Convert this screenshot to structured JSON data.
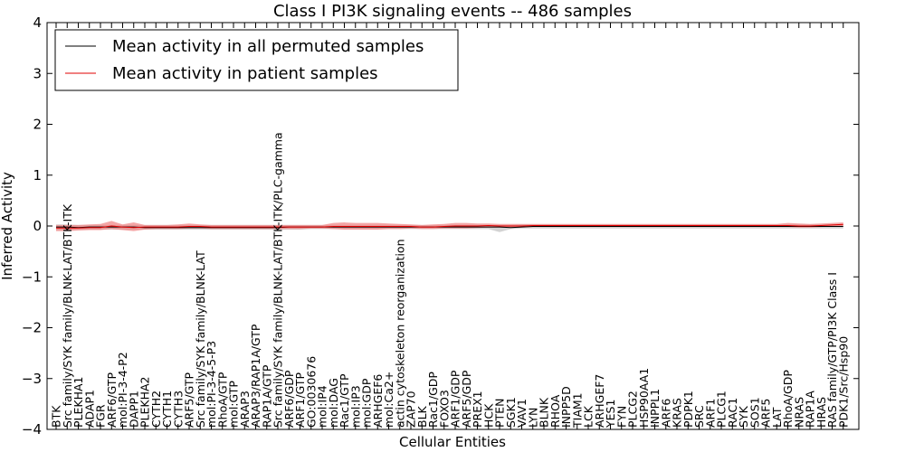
{
  "chart_data": {
    "type": "line",
    "title": "Class I PI3K signaling events -- 486 samples",
    "xlabel": "Cellular Entities",
    "ylabel": "Inferred Activity",
    "ylim": [
      -4,
      4
    ],
    "yticks": [
      "4",
      "3",
      "2",
      "1",
      "0",
      "−1",
      "−2",
      "−3",
      "−4"
    ],
    "ytick_values": [
      4,
      3,
      2,
      1,
      0,
      -1,
      -2,
      -3,
      -4
    ],
    "legend_position": "top-left",
    "categories": [
      "BTK",
      "Src family/SYK family/BLNK-LAT/BTK-ITK",
      "PLEKHA1",
      "ADAP1",
      "FGR",
      "ARF6/GTP",
      "mol:PI-3-4-P2",
      "DAPP1",
      "PLEKHA2",
      "CYTH2",
      "CYTH1",
      "CYTH3",
      "ARF5/GTP",
      "Src family/SYK family/BLNK-LAT",
      "mol:PI-3-4-5-P3",
      "RhoA/GTP",
      "mol:GTP",
      "ARAP3",
      "ARAP3/RAP1A/GTP",
      "RAP1A/GTP",
      "Src family/SYK family/BLNK-LAT/BTK-ITK/PLC-gamma",
      "ARF6/GDP",
      "ARF1/GTP",
      "GO:0030676",
      "mol:IP4",
      "mol:DAG",
      "Rac1/GTP",
      "mol:IP3",
      "mol:GDP",
      "ARHGEF6",
      "mol:Ca2+",
      "actin cytoskeleton reorganization",
      "ZAP70",
      "BLK",
      "Rac1/GDP",
      "FOXO3",
      "ARF1/GDP",
      "ARF5/GDP",
      "PREX1",
      "HCK",
      "PTEN",
      "SGK1",
      "VAV1",
      "LYN",
      "BLNK",
      "RHOA",
      "INPP5D",
      "TIAM1",
      "LCK",
      "ARHGEF7",
      "YES1",
      "FYN",
      "PLCG2",
      "HSP90AA1",
      "INPPL1",
      "ARF6",
      "KRAS",
      "PDPK1",
      "SRC",
      "ARF1",
      "PLCG1",
      "RAC1",
      "SYK",
      "SOS1",
      "ARF5",
      "LAT",
      "RhoA/GDP",
      "NRAS",
      "RAP1A",
      "HRAS",
      "RAS family/GTP/PI3K Class I",
      "PDK1/Src/Hsp90"
    ],
    "series": [
      {
        "name": "Mean activity in all permuted samples",
        "color": "#000000",
        "values": [
          -0.02,
          -0.02,
          -0.03,
          -0.02,
          -0.02,
          -0.02,
          -0.02,
          -0.02,
          -0.03,
          -0.03,
          -0.03,
          -0.03,
          -0.03,
          -0.03,
          -0.03,
          -0.03,
          -0.03,
          -0.03,
          -0.03,
          -0.03,
          -0.03,
          -0.02,
          -0.02,
          -0.02,
          -0.02,
          -0.02,
          -0.02,
          -0.02,
          -0.02,
          -0.02,
          -0.02,
          -0.02,
          -0.02,
          -0.02,
          -0.02,
          -0.02,
          -0.02,
          -0.02,
          -0.02,
          -0.02,
          -0.02,
          -0.03,
          -0.02,
          -0.01,
          -0.01,
          -0.01,
          -0.01,
          -0.01,
          -0.01,
          -0.01,
          -0.01,
          -0.01,
          -0.01,
          -0.01,
          -0.01,
          -0.01,
          -0.01,
          -0.01,
          -0.01,
          -0.01,
          -0.01,
          -0.01,
          -0.01,
          -0.01,
          -0.01,
          -0.01,
          -0.01,
          -0.01,
          -0.01,
          -0.01,
          -0.01,
          -0.01
        ],
        "band_lower": [
          -0.08,
          -0.08,
          -0.07,
          -0.07,
          -0.07,
          -0.07,
          -0.07,
          -0.07,
          -0.07,
          -0.07,
          -0.07,
          -0.07,
          -0.07,
          -0.07,
          -0.07,
          -0.07,
          -0.07,
          -0.07,
          -0.07,
          -0.07,
          -0.07,
          -0.07,
          -0.07,
          -0.06,
          -0.06,
          -0.06,
          -0.06,
          -0.06,
          -0.06,
          -0.06,
          -0.06,
          -0.06,
          -0.06,
          -0.06,
          -0.06,
          -0.06,
          -0.06,
          -0.06,
          -0.06,
          -0.06,
          -0.12,
          -0.06,
          -0.05,
          -0.05,
          -0.05,
          -0.05,
          -0.05,
          -0.05,
          -0.05,
          -0.05,
          -0.05,
          -0.05,
          -0.05,
          -0.05,
          -0.05,
          -0.05,
          -0.05,
          -0.05,
          -0.05,
          -0.05,
          -0.05,
          -0.05,
          -0.05,
          -0.05,
          -0.05,
          -0.05,
          -0.05,
          -0.05,
          -0.05,
          -0.05,
          -0.05,
          -0.05
        ],
        "band_upper": [
          0.03,
          0.03,
          0.02,
          0.02,
          0.02,
          0.02,
          0.02,
          0.02,
          0.02,
          0.02,
          0.02,
          0.02,
          0.02,
          0.02,
          0.02,
          0.02,
          0.02,
          0.02,
          0.02,
          0.02,
          0.02,
          0.02,
          0.02,
          0.02,
          0.02,
          0.02,
          0.02,
          0.02,
          0.02,
          0.02,
          0.02,
          0.02,
          0.02,
          0.02,
          0.02,
          0.02,
          0.02,
          0.02,
          0.02,
          0.02,
          0.02,
          0.02,
          0.03,
          0.03,
          0.03,
          0.03,
          0.03,
          0.03,
          0.03,
          0.03,
          0.03,
          0.03,
          0.03,
          0.03,
          0.03,
          0.03,
          0.03,
          0.03,
          0.03,
          0.03,
          0.03,
          0.03,
          0.03,
          0.03,
          0.03,
          0.03,
          0.03,
          0.03,
          0.03,
          0.03,
          0.03,
          0.03
        ],
        "band_color": "#c8c8c8"
      },
      {
        "name": "Mean activity in patient samples",
        "color": "#e00000",
        "values": [
          -0.04,
          -0.04,
          -0.04,
          -0.03,
          -0.03,
          0.0,
          -0.02,
          -0.03,
          -0.02,
          -0.02,
          -0.02,
          -0.02,
          -0.01,
          -0.01,
          -0.02,
          -0.02,
          -0.02,
          -0.02,
          -0.02,
          -0.02,
          -0.02,
          -0.02,
          -0.02,
          -0.02,
          -0.02,
          -0.01,
          -0.01,
          -0.01,
          -0.01,
          -0.01,
          -0.01,
          -0.01,
          -0.01,
          -0.02,
          -0.02,
          -0.01,
          0.0,
          0.0,
          0.0,
          0.01,
          0.0,
          0.0,
          0.0,
          0.01,
          0.01,
          0.01,
          0.01,
          0.01,
          0.01,
          0.01,
          0.01,
          0.01,
          0.01,
          0.01,
          0.01,
          0.01,
          0.01,
          0.01,
          0.01,
          0.01,
          0.01,
          0.01,
          0.01,
          0.01,
          0.01,
          0.01,
          0.01,
          0.0,
          0.0,
          0.01,
          0.02,
          0.03
        ],
        "band_lower": [
          -0.1,
          -0.1,
          -0.09,
          -0.08,
          -0.08,
          -0.06,
          -0.08,
          -0.1,
          -0.07,
          -0.06,
          -0.06,
          -0.06,
          -0.05,
          -0.05,
          -0.06,
          -0.06,
          -0.06,
          -0.06,
          -0.06,
          -0.06,
          -0.06,
          -0.06,
          -0.06,
          -0.05,
          -0.05,
          -0.06,
          -0.07,
          -0.07,
          -0.07,
          -0.07,
          -0.06,
          -0.06,
          -0.05,
          -0.06,
          -0.06,
          -0.05,
          -0.05,
          -0.05,
          -0.04,
          -0.03,
          -0.03,
          -0.04,
          -0.03,
          -0.02,
          -0.02,
          -0.02,
          -0.02,
          -0.02,
          -0.02,
          -0.02,
          -0.02,
          -0.02,
          -0.02,
          -0.02,
          -0.02,
          -0.02,
          -0.02,
          -0.02,
          -0.02,
          -0.02,
          -0.02,
          -0.02,
          -0.02,
          -0.02,
          -0.02,
          -0.02,
          -0.02,
          -0.03,
          -0.03,
          -0.02,
          -0.01,
          0.0
        ],
        "band_upper": [
          0.02,
          0.02,
          0.02,
          0.03,
          0.04,
          0.1,
          0.03,
          0.07,
          0.02,
          0.02,
          0.02,
          0.03,
          0.05,
          0.03,
          0.02,
          0.02,
          0.02,
          0.02,
          0.02,
          0.02,
          0.02,
          0.02,
          0.02,
          0.02,
          0.02,
          0.06,
          0.07,
          0.06,
          0.06,
          0.06,
          0.05,
          0.04,
          0.03,
          0.02,
          0.03,
          0.04,
          0.06,
          0.06,
          0.05,
          0.05,
          0.04,
          0.04,
          0.04,
          0.04,
          0.04,
          0.04,
          0.04,
          0.04,
          0.04,
          0.04,
          0.04,
          0.04,
          0.04,
          0.04,
          0.04,
          0.04,
          0.04,
          0.04,
          0.04,
          0.04,
          0.04,
          0.04,
          0.04,
          0.04,
          0.04,
          0.04,
          0.06,
          0.05,
          0.04,
          0.05,
          0.06,
          0.07
        ],
        "band_color": "#f08080"
      }
    ]
  }
}
